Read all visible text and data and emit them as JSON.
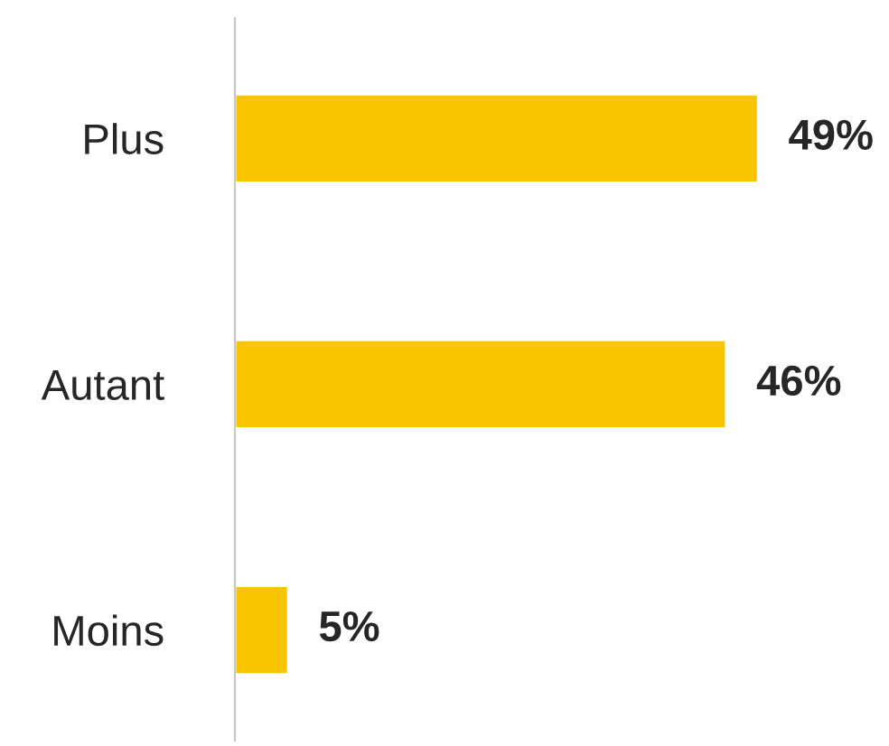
{
  "chart_data": {
    "type": "bar",
    "orientation": "horizontal",
    "categories": [
      "Plus",
      "Autant",
      "Moins"
    ],
    "values": [
      49,
      46,
      5
    ],
    "value_labels": [
      "49%",
      "46%",
      "5%"
    ],
    "color": "#fac400",
    "grid": false,
    "legend": false
  }
}
